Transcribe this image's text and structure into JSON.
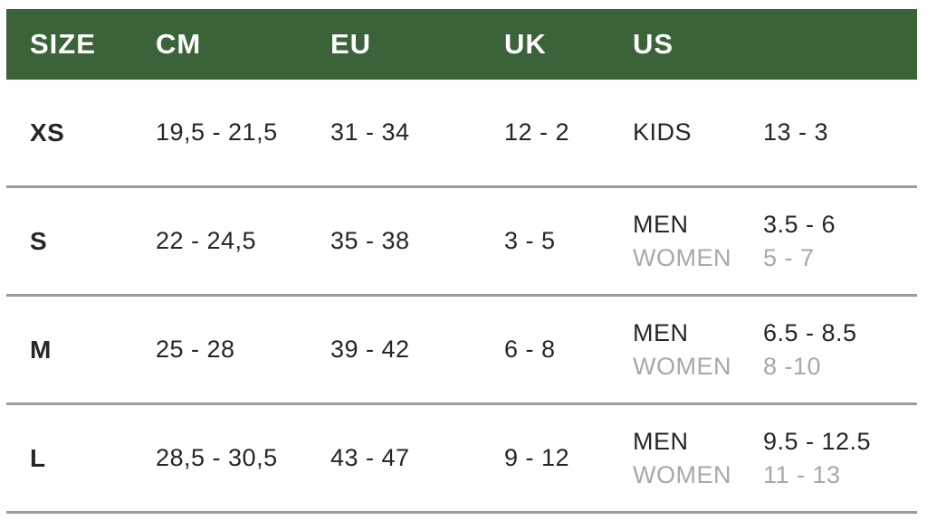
{
  "chart_data": {
    "type": "table",
    "columns": [
      "SIZE",
      "CM",
      "EU",
      "UK",
      "US"
    ],
    "rows": [
      {
        "size": "XS",
        "cm": "19,5 - 21,5",
        "eu": "31 - 34",
        "uk": "12 - 2",
        "us": [
          {
            "label": "KIDS",
            "value": "13 - 3"
          }
        ]
      },
      {
        "size": "S",
        "cm": "22 - 24,5",
        "eu": "35 - 38",
        "uk": "3 - 5",
        "us": [
          {
            "label": "MEN",
            "value": "3.5 - 6"
          },
          {
            "label": "WOMEN",
            "value": "5 - 7"
          }
        ]
      },
      {
        "size": "M",
        "cm": "25 - 28",
        "eu": "39 - 42",
        "uk": "6 - 8",
        "us": [
          {
            "label": "MEN",
            "value": "6.5 - 8.5"
          },
          {
            "label": "WOMEN",
            "value": "8 -10"
          }
        ]
      },
      {
        "size": "L",
        "cm": "28,5 - 30,5",
        "eu": "43 - 47",
        "uk": "9 - 12",
        "us": [
          {
            "label": "MEN",
            "value": "9.5 - 12.5"
          },
          {
            "label": "WOMEN",
            "value": "11 - 13"
          }
        ]
      }
    ],
    "layout": {
      "grid": "off",
      "header_position": "top"
    },
    "colors": {
      "header_bg": "#3A6339",
      "header_text": "#FFFFFF",
      "text": "#262626",
      "muted_text": "#A8A8A8",
      "divider": "#9B9B9B"
    }
  }
}
